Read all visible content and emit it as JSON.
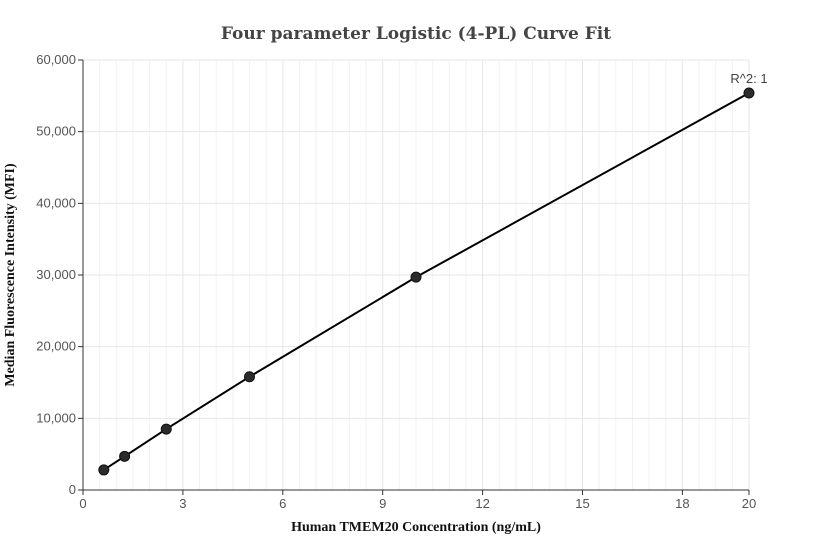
{
  "chart_data": {
    "type": "scatter",
    "title": "Four parameter Logistic (4-PL) Curve Fit",
    "xlabel": "Human TMEM20 Concentration (ng/mL)",
    "ylabel": "Median Fluorescence Intensity (MFI)",
    "xlim": [
      0,
      20
    ],
    "ylim": [
      0,
      60000
    ],
    "x_ticks": [
      0,
      3,
      6,
      9,
      12,
      15,
      18,
      20
    ],
    "x_tick_labels": [
      "0",
      "3",
      "6",
      "9",
      "12",
      "15",
      "18",
      "20"
    ],
    "y_ticks": [
      0,
      10000,
      20000,
      30000,
      40000,
      50000,
      60000
    ],
    "y_tick_labels": [
      "0",
      "10,000",
      "20,000",
      "30,000",
      "40,000",
      "50,000",
      "60,000"
    ],
    "grid": true,
    "series": [
      {
        "x": [
          0.625,
          1.25,
          2.5,
          5,
          10,
          20
        ],
        "y": [
          2800,
          4700,
          8500,
          15800,
          29700,
          55400
        ]
      }
    ],
    "annotations": [
      {
        "text": "R^2: 1",
        "x": 20,
        "y": 55400
      }
    ]
  }
}
